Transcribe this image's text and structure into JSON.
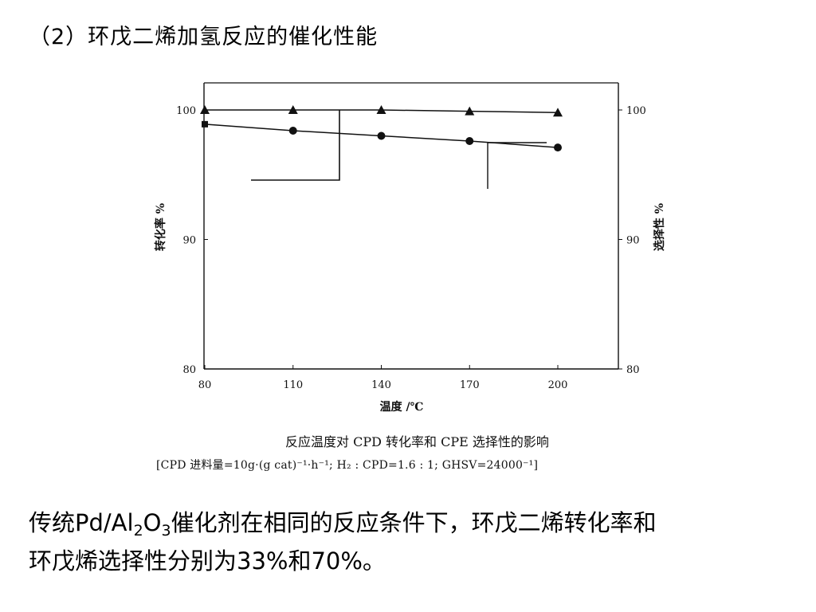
{
  "slide": {
    "title": "（2）环戊二烯加氢反应的催化性能"
  },
  "caption": {
    "title": "反应温度对 CPD 转化率和 CPE 选择性的影响",
    "conditions": "[CPD 进料量=10g·(g cat)⁻¹·h⁻¹; H₂ : CPD=1.6 : 1; GHSV=24000⁻¹]"
  },
  "body": {
    "line1_part1": "传统Pd/Al",
    "line1_sub1": "2",
    "line1_part2": "O",
    "line1_sub2": "3",
    "line1_part3": "催化剂在相同的反应条件下，环戊二烯转化率和",
    "line2": "环戊烯选择性分别为33%和70%。"
  },
  "chart_data": {
    "type": "line",
    "xlabel": "温度 /℃",
    "ylabel_left": "转化率 %",
    "ylabel_right": "选择性 %",
    "x_ticks": [
      80,
      110,
      140,
      170,
      200
    ],
    "y_ticks": [
      80,
      90,
      100
    ],
    "xlim": [
      80,
      200
    ],
    "ylim": [
      80,
      100
    ],
    "grid": false,
    "series": [
      {
        "marker": "triangle",
        "axis": "right",
        "x": [
          80,
          110,
          140,
          170,
          200
        ],
        "values": [
          100.0,
          100.0,
          100.0,
          99.9,
          99.8
        ]
      },
      {
        "marker": "circle",
        "axis": "left",
        "x": [
          80,
          110,
          140,
          170,
          200
        ],
        "values": [
          98.9,
          98.4,
          98.0,
          97.6,
          97.1
        ]
      }
    ],
    "colors": {
      "ink": "#111111"
    }
  }
}
